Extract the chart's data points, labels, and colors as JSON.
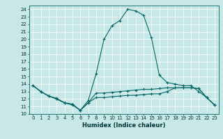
{
  "title": "",
  "xlabel": "Humidex (Indice chaleur)",
  "bg_color": "#c8e8e8",
  "line_color": "#006666",
  "xlim": [
    -0.5,
    23.5
  ],
  "ylim": [
    10,
    24.5
  ],
  "yticks": [
    10,
    11,
    12,
    13,
    14,
    15,
    16,
    17,
    18,
    19,
    20,
    21,
    22,
    23,
    24
  ],
  "xticks": [
    0,
    1,
    2,
    3,
    4,
    5,
    6,
    7,
    8,
    9,
    10,
    11,
    12,
    13,
    14,
    15,
    16,
    17,
    18,
    19,
    20,
    21,
    22,
    23
  ],
  "line1_x": [
    0,
    1,
    2,
    3,
    4,
    5,
    6,
    7,
    8,
    9,
    10,
    11,
    12,
    13,
    14,
    15,
    16,
    17,
    18,
    19,
    20,
    21,
    22,
    23
  ],
  "line1_y": [
    13.8,
    13.0,
    12.4,
    12.1,
    11.5,
    11.2,
    10.5,
    11.8,
    15.4,
    20.0,
    21.8,
    22.5,
    24.0,
    23.8,
    23.2,
    20.2,
    15.2,
    14.2,
    14.0,
    13.8,
    13.8,
    13.0,
    12.2,
    11.2
  ],
  "line2_x": [
    0,
    1,
    2,
    3,
    4,
    5,
    6,
    7,
    8,
    9,
    10,
    11,
    12,
    13,
    14,
    15,
    16,
    17,
    18,
    19,
    20,
    21,
    22,
    23
  ],
  "line2_y": [
    13.8,
    13.0,
    12.4,
    12.0,
    11.5,
    11.3,
    10.5,
    11.5,
    12.8,
    12.8,
    12.9,
    13.0,
    13.1,
    13.2,
    13.3,
    13.3,
    13.4,
    13.5,
    13.5,
    13.5,
    13.5,
    13.4,
    12.2,
    11.2
  ],
  "line3_x": [
    0,
    1,
    2,
    3,
    4,
    5,
    6,
    7,
    8,
    9,
    10,
    11,
    12,
    13,
    14,
    15,
    16,
    17,
    18,
    19,
    20,
    21,
    22,
    23
  ],
  "line3_y": [
    13.8,
    13.0,
    12.4,
    12.0,
    11.5,
    11.3,
    10.5,
    11.5,
    12.2,
    12.2,
    12.3,
    12.4,
    12.5,
    12.5,
    12.6,
    12.7,
    12.7,
    13.0,
    13.5,
    13.5,
    13.5,
    13.4,
    12.2,
    11.2
  ],
  "tick_fontsize": 5.0,
  "xlabel_fontsize": 6.0,
  "grid_color": "#ffffff",
  "spine_color": "#006666"
}
